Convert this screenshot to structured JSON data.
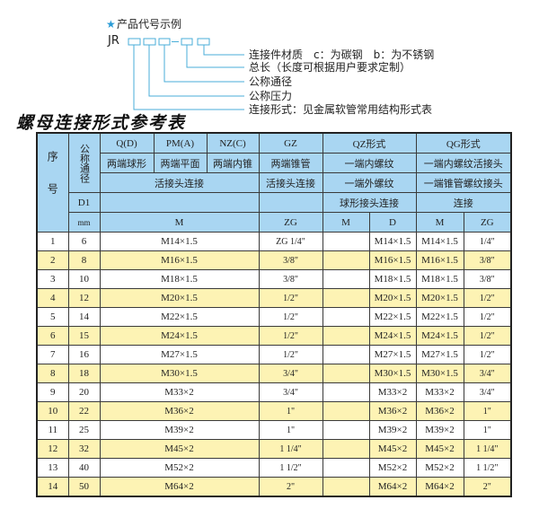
{
  "code_example": {
    "heading": "产品代号示例",
    "star_icon": "star-icon",
    "prefix": "JR",
    "labels": [
      "连接件材质　c：为碳钢　b：为不锈钢",
      "总长（长度可根据用户要求定制）",
      "公称通径",
      "公称压力",
      "连接形式：见金属软管常用结构形式表"
    ],
    "line_color": "#4aaed8"
  },
  "table_title": "螺母连接形式参考表",
  "colors": {
    "header_bg": "#a9d6f2",
    "alt_row_bg": "#fdf3b4",
    "border": "#3a3a3a"
  },
  "header": {
    "seq": "序号",
    "dn": "公称通径",
    "codes": [
      "Q(D)",
      "PM(A)",
      "NZ(C)",
      "GZ",
      "QZ形式",
      "QG形式"
    ],
    "ends": [
      "两端球形",
      "两端平面",
      "两端内锥",
      "两端锥管",
      "一端内螺纹",
      "一端内螺纹活接头"
    ],
    "conn": [
      "活接头连接",
      "活接头连接",
      "一端外螺纹",
      "一端锥管螺纹接头"
    ],
    "d1": "D1",
    "conn2": [
      "球形接头连接",
      "连接"
    ],
    "units": [
      "mm",
      "M",
      "ZG",
      "M",
      "D",
      "M",
      "ZG"
    ]
  },
  "rows": [
    {
      "no": "1",
      "dn": "6",
      "m": "M14×1.5",
      "zg": "ZG 1/4\"",
      "qz_m": "",
      "qz_d": "M14×1.5",
      "qg_m": "M14×1.5",
      "qg_zg": "1/4\""
    },
    {
      "no": "2",
      "dn": "8",
      "m": "M16×1.5",
      "zg": "3/8\"",
      "qz_m": "",
      "qz_d": "M16×1.5",
      "qg_m": "M16×1.5",
      "qg_zg": "3/8\""
    },
    {
      "no": "3",
      "dn": "10",
      "m": "M18×1.5",
      "zg": "3/8\"",
      "qz_m": "",
      "qz_d": "M18×1.5",
      "qg_m": "M18×1.5",
      "qg_zg": "3/8\""
    },
    {
      "no": "4",
      "dn": "12",
      "m": "M20×1.5",
      "zg": "1/2\"",
      "qz_m": "",
      "qz_d": "M20×1.5",
      "qg_m": "M20×1.5",
      "qg_zg": "1/2\""
    },
    {
      "no": "5",
      "dn": "14",
      "m": "M22×1.5",
      "zg": "1/2\"",
      "qz_m": "",
      "qz_d": "M22×1.5",
      "qg_m": "M22×1.5",
      "qg_zg": "1/2\""
    },
    {
      "no": "6",
      "dn": "15",
      "m": "M24×1.5",
      "zg": "1/2\"",
      "qz_m": "",
      "qz_d": "M24×1.5",
      "qg_m": "M24×1.5",
      "qg_zg": "1/2\""
    },
    {
      "no": "7",
      "dn": "16",
      "m": "M27×1.5",
      "zg": "1/2\"",
      "qz_m": "",
      "qz_d": "M27×1.5",
      "qg_m": "M27×1.5",
      "qg_zg": "1/2\""
    },
    {
      "no": "8",
      "dn": "18",
      "m": "M30×1.5",
      "zg": "3/4\"",
      "qz_m": "",
      "qz_d": "M30×1.5",
      "qg_m": "M30×1.5",
      "qg_zg": "3/4\""
    },
    {
      "no": "9",
      "dn": "20",
      "m": "M33×2",
      "zg": "3/4\"",
      "qz_m": "",
      "qz_d": "M33×2",
      "qg_m": "M33×2",
      "qg_zg": "3/4\""
    },
    {
      "no": "10",
      "dn": "22",
      "m": "M36×2",
      "zg": "1\"",
      "qz_m": "",
      "qz_d": "M36×2",
      "qg_m": "M36×2",
      "qg_zg": "1\""
    },
    {
      "no": "11",
      "dn": "25",
      "m": "M39×2",
      "zg": "1\"",
      "qz_m": "",
      "qz_d": "M39×2",
      "qg_m": "M39×2",
      "qg_zg": "1\""
    },
    {
      "no": "12",
      "dn": "32",
      "m": "M45×2",
      "zg": "1 1/4\"",
      "qz_m": "",
      "qz_d": "M45×2",
      "qg_m": "M45×2",
      "qg_zg": "1 1/4\""
    },
    {
      "no": "13",
      "dn": "40",
      "m": "M52×2",
      "zg": "1 1/2\"",
      "qz_m": "",
      "qz_d": "M52×2",
      "qg_m": "M52×2",
      "qg_zg": "1 1/2\""
    },
    {
      "no": "14",
      "dn": "50",
      "m": "M64×2",
      "zg": "2\"",
      "qz_m": "",
      "qz_d": "M64×2",
      "qg_m": "M64×2",
      "qg_zg": "2\""
    }
  ]
}
